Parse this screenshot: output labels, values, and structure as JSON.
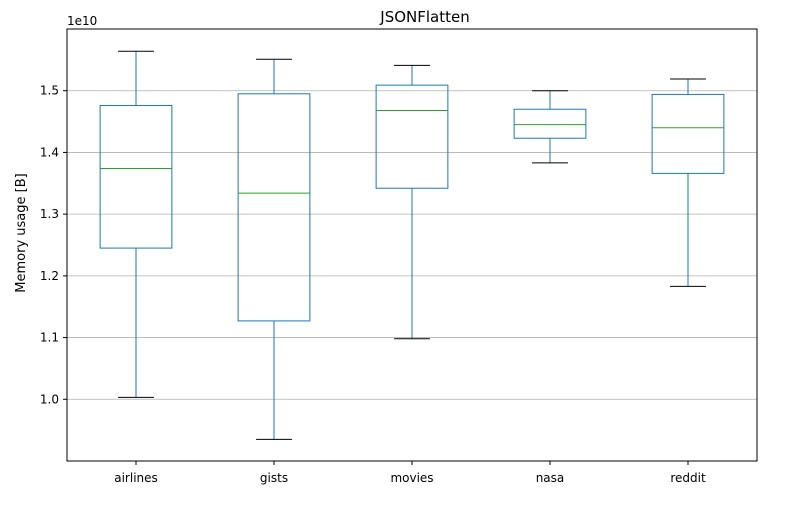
{
  "chart_data": {
    "type": "box",
    "title": "JSONFlatten",
    "ylabel": "Memory usage [B]",
    "xlabel": "",
    "scale_label": "1e10",
    "ylim": [
      0.9,
      1.6
    ],
    "yticks": [
      1.0,
      1.1,
      1.2,
      1.3,
      1.4,
      1.5
    ],
    "ytick_labels": [
      "1.0",
      "1.1",
      "1.2",
      "1.3",
      "1.4",
      "1.5"
    ],
    "grid": "horizontal",
    "categories": [
      "airlines",
      "gists",
      "movies",
      "nasa",
      "reddit"
    ],
    "boxes": [
      {
        "min": 1.003,
        "q1": 1.245,
        "median": 1.374,
        "q3": 1.476,
        "max": 1.564
      },
      {
        "min": 0.935,
        "q1": 1.127,
        "median": 1.334,
        "q3": 1.495,
        "max": 1.551
      },
      {
        "min": 1.098,
        "q1": 1.342,
        "median": 1.468,
        "q3": 1.509,
        "max": 1.541
      },
      {
        "min": 1.383,
        "q1": 1.423,
        "median": 1.445,
        "q3": 1.47,
        "max": 1.5
      },
      {
        "min": 1.183,
        "q1": 1.366,
        "median": 1.44,
        "q3": 1.494,
        "max": 1.519
      }
    ],
    "colors": {
      "box": "#1f77b4",
      "median": "#2ca02c",
      "whisker_cap": "#000000",
      "grid": "#b0b0b0"
    }
  }
}
